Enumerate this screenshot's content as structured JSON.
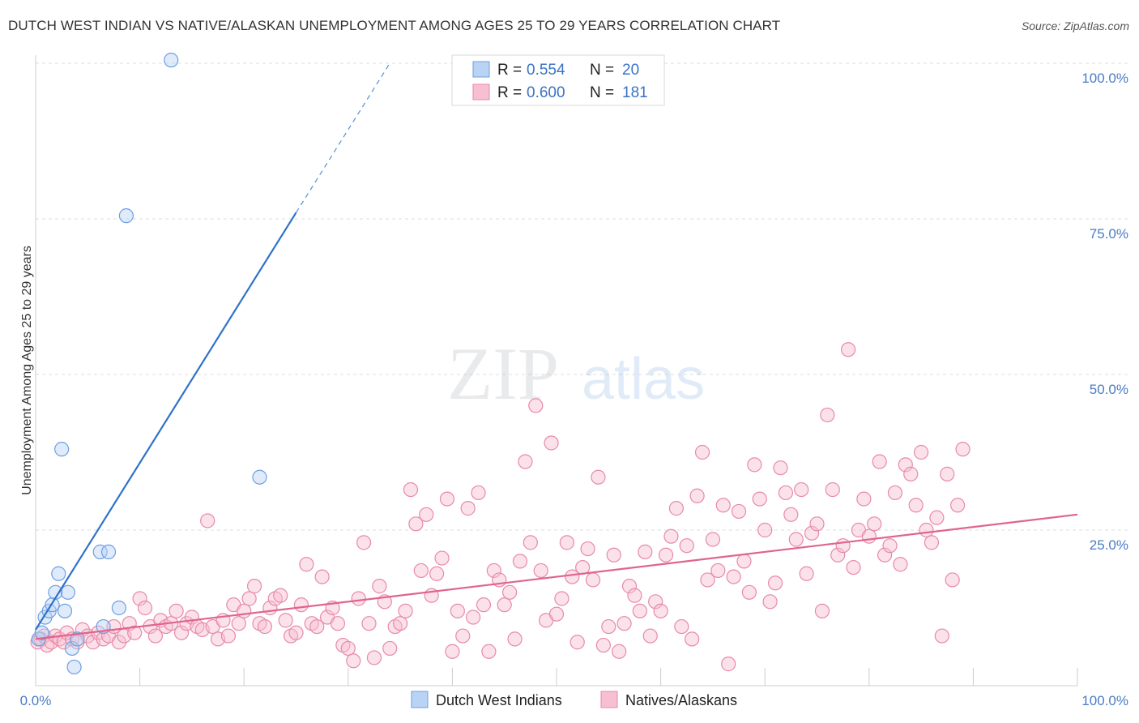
{
  "title": "DUTCH WEST INDIAN VS NATIVE/ALASKAN UNEMPLOYMENT AMONG AGES 25 TO 29 YEARS CORRELATION CHART",
  "source": "Source: ZipAtlas.com",
  "watermark": {
    "zip": "ZIP",
    "atlas": "atlas"
  },
  "colors": {
    "blue": "#6e9fe0",
    "blue_fill": "#b9d3f5",
    "blue_line": "#2f72c9",
    "pink": "#e889a8",
    "pink_fill": "#f7bfd1",
    "pink_line": "#e0648f",
    "grid": "#dddddd"
  },
  "legend": {
    "rows": [
      {
        "r_label": "R =",
        "r_value": "0.554",
        "n_label": "N =",
        "n_value": "20"
      },
      {
        "r_label": "R =",
        "r_value": "0.600",
        "n_label": "N =",
        "n_value": "181"
      }
    ]
  },
  "chart_data": {
    "type": "scatter",
    "title": "DUTCH WEST INDIAN VS NATIVE/ALASKAN UNEMPLOYMENT AMONG AGES 25 TO 29 YEARS CORRELATION CHART",
    "xlabel": "",
    "ylabel": "Unemployment Among Ages 25 to 29 years",
    "xlim": [
      0,
      100
    ],
    "ylim": [
      0,
      100
    ],
    "x_tick_labels": [
      "0.0%",
      "100.0%"
    ],
    "y_tick_labels": [
      {
        "value": 25,
        "label": "25.0%"
      },
      {
        "value": 50,
        "label": "50.0%"
      },
      {
        "value": 75,
        "label": "75.0%"
      },
      {
        "value": 100,
        "label": "100.0%"
      }
    ],
    "grid": true,
    "legend_position": "bottom-center",
    "series": [
      {
        "name": "Dutch West Indians",
        "color": "#6e9fe0",
        "trend": {
          "x0": 0,
          "y0": 9.0,
          "x1": 25.0,
          "y1": 76.0,
          "dashed_to_x": 34.0,
          "dashed_to_y": 100.0
        },
        "points": [
          [
            0.3,
            7.5
          ],
          [
            0.6,
            8.5
          ],
          [
            0.9,
            11.0
          ],
          [
            1.3,
            12.0
          ],
          [
            1.6,
            13.0
          ],
          [
            1.9,
            15.0
          ],
          [
            2.2,
            18.0
          ],
          [
            2.5,
            38.0
          ],
          [
            2.8,
            12.0
          ],
          [
            3.1,
            15.0
          ],
          [
            3.5,
            6.0
          ],
          [
            3.7,
            3.0
          ],
          [
            4.0,
            7.5
          ],
          [
            6.2,
            21.5
          ],
          [
            6.5,
            9.5
          ],
          [
            7.0,
            21.5
          ],
          [
            8.0,
            12.5
          ],
          [
            8.7,
            75.5
          ],
          [
            13.0,
            100.5
          ],
          [
            21.5,
            33.5
          ]
        ]
      },
      {
        "name": "Natives/Alaskans",
        "color": "#e889a8",
        "trend": {
          "x0": 0,
          "y0": 7.5,
          "x1": 100,
          "y1": 27.5
        },
        "points": [
          [
            0.2,
            7.0
          ],
          [
            0.5,
            7.5
          ],
          [
            0.8,
            8.0
          ],
          [
            1.1,
            6.5
          ],
          [
            1.5,
            7.0
          ],
          [
            1.9,
            8.0
          ],
          [
            2.3,
            7.5
          ],
          [
            2.7,
            7.0
          ],
          [
            3.0,
            8.5
          ],
          [
            3.5,
            7.5
          ],
          [
            4.0,
            7.0
          ],
          [
            4.5,
            9.0
          ],
          [
            5.0,
            8.0
          ],
          [
            5.5,
            7.0
          ],
          [
            6.0,
            8.5
          ],
          [
            6.5,
            7.5
          ],
          [
            7.0,
            8.0
          ],
          [
            7.5,
            9.5
          ],
          [
            8.0,
            7.0
          ],
          [
            8.5,
            8.0
          ],
          [
            9.0,
            10.0
          ],
          [
            9.5,
            8.5
          ],
          [
            10.0,
            14.0
          ],
          [
            10.5,
            12.5
          ],
          [
            11.0,
            9.5
          ],
          [
            11.5,
            8.0
          ],
          [
            12.0,
            10.5
          ],
          [
            12.5,
            9.5
          ],
          [
            13.0,
            10.0
          ],
          [
            13.5,
            12.0
          ],
          [
            14.0,
            8.5
          ],
          [
            14.5,
            10.0
          ],
          [
            15.0,
            11.0
          ],
          [
            15.5,
            9.5
          ],
          [
            16.0,
            9.0
          ],
          [
            16.5,
            26.5
          ],
          [
            17.0,
            9.5
          ],
          [
            17.5,
            7.5
          ],
          [
            18.0,
            10.5
          ],
          [
            18.5,
            8.0
          ],
          [
            19.0,
            13.0
          ],
          [
            19.5,
            10.0
          ],
          [
            20.0,
            12.0
          ],
          [
            20.5,
            14.0
          ],
          [
            21.0,
            16.0
          ],
          [
            21.5,
            10.0
          ],
          [
            22.0,
            9.5
          ],
          [
            22.5,
            12.5
          ],
          [
            23.0,
            14.0
          ],
          [
            23.5,
            14.5
          ],
          [
            24.0,
            10.5
          ],
          [
            24.5,
            8.0
          ],
          [
            25.0,
            8.5
          ],
          [
            25.5,
            13.0
          ],
          [
            26.0,
            19.5
          ],
          [
            26.5,
            10.0
          ],
          [
            27.0,
            9.5
          ],
          [
            27.5,
            17.5
          ],
          [
            28.0,
            11.0
          ],
          [
            28.5,
            12.5
          ],
          [
            29.0,
            10.0
          ],
          [
            29.5,
            6.5
          ],
          [
            30.0,
            6.0
          ],
          [
            30.5,
            4.0
          ],
          [
            31.0,
            14.0
          ],
          [
            31.5,
            23.0
          ],
          [
            32.0,
            10.0
          ],
          [
            32.5,
            4.5
          ],
          [
            33.0,
            16.0
          ],
          [
            33.5,
            13.5
          ],
          [
            34.0,
            6.0
          ],
          [
            34.5,
            9.5
          ],
          [
            35.0,
            10.0
          ],
          [
            35.5,
            12.0
          ],
          [
            36.0,
            31.5
          ],
          [
            36.5,
            26.0
          ],
          [
            37.0,
            18.5
          ],
          [
            37.5,
            27.5
          ],
          [
            38.0,
            14.5
          ],
          [
            38.5,
            18.0
          ],
          [
            39.0,
            20.5
          ],
          [
            39.5,
            30.0
          ],
          [
            40.0,
            5.5
          ],
          [
            40.5,
            12.0
          ],
          [
            41.0,
            8.0
          ],
          [
            41.5,
            28.5
          ],
          [
            42.0,
            11.0
          ],
          [
            42.5,
            31.0
          ],
          [
            43.0,
            13.0
          ],
          [
            43.5,
            5.5
          ],
          [
            44.0,
            18.5
          ],
          [
            44.5,
            17.0
          ],
          [
            45.0,
            13.0
          ],
          [
            45.5,
            15.0
          ],
          [
            46.0,
            7.5
          ],
          [
            46.5,
            20.0
          ],
          [
            47.0,
            36.0
          ],
          [
            47.5,
            23.0
          ],
          [
            48.0,
            45.0
          ],
          [
            48.5,
            18.5
          ],
          [
            49.0,
            10.5
          ],
          [
            49.5,
            39.0
          ],
          [
            50.0,
            11.5
          ],
          [
            50.5,
            14.0
          ],
          [
            51.0,
            23.0
          ],
          [
            51.5,
            17.5
          ],
          [
            52.0,
            7.0
          ],
          [
            52.5,
            19.0
          ],
          [
            53.0,
            22.0
          ],
          [
            53.5,
            17.0
          ],
          [
            54.0,
            33.5
          ],
          [
            54.5,
            6.5
          ],
          [
            55.0,
            9.5
          ],
          [
            55.5,
            21.0
          ],
          [
            56.0,
            5.5
          ],
          [
            56.5,
            10.0
          ],
          [
            57.0,
            16.0
          ],
          [
            57.5,
            14.5
          ],
          [
            58.0,
            12.0
          ],
          [
            58.5,
            21.5
          ],
          [
            59.0,
            8.0
          ],
          [
            59.5,
            13.5
          ],
          [
            60.0,
            12.0
          ],
          [
            60.5,
            21.0
          ],
          [
            61.0,
            24.0
          ],
          [
            61.5,
            28.5
          ],
          [
            62.0,
            9.5
          ],
          [
            62.5,
            22.5
          ],
          [
            63.0,
            7.5
          ],
          [
            63.5,
            30.5
          ],
          [
            64.0,
            37.5
          ],
          [
            64.5,
            17.0
          ],
          [
            65.0,
            23.5
          ],
          [
            65.5,
            18.5
          ],
          [
            66.0,
            29.0
          ],
          [
            66.5,
            3.5
          ],
          [
            67.0,
            17.5
          ],
          [
            67.5,
            28.0
          ],
          [
            68.0,
            20.0
          ],
          [
            68.5,
            15.0
          ],
          [
            69.0,
            35.5
          ],
          [
            69.5,
            30.0
          ],
          [
            70.0,
            25.0
          ],
          [
            70.5,
            13.5
          ],
          [
            71.0,
            16.5
          ],
          [
            71.5,
            35.0
          ],
          [
            72.0,
            31.0
          ],
          [
            72.5,
            27.5
          ],
          [
            73.0,
            23.5
          ],
          [
            73.5,
            31.5
          ],
          [
            74.0,
            18.0
          ],
          [
            74.5,
            24.5
          ],
          [
            75.0,
            26.0
          ],
          [
            75.5,
            12.0
          ],
          [
            76.0,
            43.5
          ],
          [
            76.5,
            31.5
          ],
          [
            77.0,
            21.0
          ],
          [
            77.5,
            22.5
          ],
          [
            78.0,
            54.0
          ],
          [
            78.5,
            19.0
          ],
          [
            79.0,
            25.0
          ],
          [
            79.5,
            30.0
          ],
          [
            80.0,
            24.0
          ],
          [
            80.5,
            26.0
          ],
          [
            81.0,
            36.0
          ],
          [
            81.5,
            21.0
          ],
          [
            82.0,
            22.5
          ],
          [
            82.5,
            31.0
          ],
          [
            83.0,
            19.5
          ],
          [
            83.5,
            35.5
          ],
          [
            84.0,
            34.0
          ],
          [
            84.5,
            29.0
          ],
          [
            85.0,
            37.5
          ],
          [
            85.5,
            25.0
          ],
          [
            86.0,
            23.0
          ],
          [
            86.5,
            27.0
          ],
          [
            87.0,
            8.0
          ],
          [
            87.5,
            34.0
          ],
          [
            88.0,
            17.0
          ],
          [
            88.5,
            29.0
          ],
          [
            89.0,
            38.0
          ]
        ]
      }
    ]
  }
}
